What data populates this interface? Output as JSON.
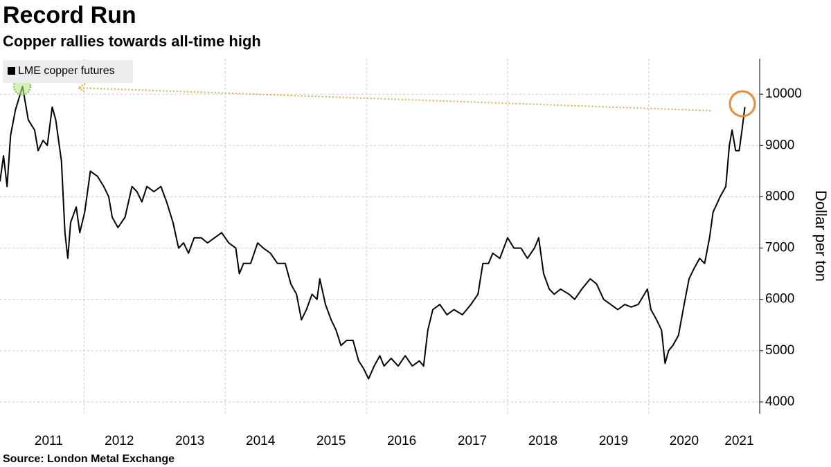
{
  "chart_data": {
    "type": "line",
    "title": "Record Run",
    "subtitle": "Copper rallies towards all-time high",
    "source": "Source: London Metal Exchange",
    "y_label": "Dollar per ton",
    "legend_position": "top-left",
    "grid": true,
    "xlim": [
      2010.81,
      2021.57
    ],
    "ylim": [
      3770,
      10690
    ],
    "yticks": [
      4000,
      5000,
      6000,
      7000,
      8000,
      9000,
      10000
    ],
    "xticks": [
      {
        "value": 2011.5,
        "label": "2011"
      },
      {
        "value": 2012.5,
        "label": "2012"
      },
      {
        "value": 2013.5,
        "label": "2013"
      },
      {
        "value": 2014.5,
        "label": "2014"
      },
      {
        "value": 2015.5,
        "label": "2015"
      },
      {
        "value": 2016.5,
        "label": "2016"
      },
      {
        "value": 2017.5,
        "label": "2017"
      },
      {
        "value": 2018.5,
        "label": "2018"
      },
      {
        "value": 2019.5,
        "label": "2019"
      },
      {
        "value": 2020.5,
        "label": "2020"
      },
      {
        "value": 2021.28,
        "label": "2021"
      }
    ],
    "xgrid": [
      2012,
      2014,
      2016,
      2018,
      2020
    ],
    "x": [
      2010.81,
      2010.86,
      2010.91,
      2010.96,
      2011.03,
      2011.13,
      2011.21,
      2011.3,
      2011.35,
      2011.42,
      2011.48,
      2011.55,
      2011.6,
      2011.68,
      2011.73,
      2011.77,
      2011.81,
      2011.89,
      2011.94,
      2012.01,
      2012.09,
      2012.19,
      2012.28,
      2012.35,
      2012.4,
      2012.48,
      2012.58,
      2012.68,
      2012.75,
      2012.82,
      2012.89,
      2012.99,
      2013.09,
      2013.17,
      2013.26,
      2013.34,
      2013.41,
      2013.48,
      2013.56,
      2013.66,
      2013.75,
      2013.85,
      2013.95,
      2014.05,
      2014.15,
      2014.2,
      2014.26,
      2014.36,
      2014.46,
      2014.54,
      2014.64,
      2014.74,
      2014.85,
      2014.93,
      2015.01,
      2015.08,
      2015.15,
      2015.23,
      2015.3,
      2015.34,
      2015.42,
      2015.5,
      2015.57,
      2015.64,
      2015.72,
      2015.81,
      2015.89,
      2015.96,
      2016.03,
      2016.11,
      2016.19,
      2016.25,
      2016.35,
      2016.45,
      2016.55,
      2016.65,
      2016.75,
      2016.81,
      2016.87,
      2016.94,
      2017.04,
      2017.14,
      2017.24,
      2017.36,
      2017.48,
      2017.58,
      2017.65,
      2017.73,
      2017.79,
      2017.89,
      2018.0,
      2018.09,
      2018.19,
      2018.28,
      2018.38,
      2018.44,
      2018.51,
      2018.59,
      2018.66,
      2018.75,
      2018.87,
      2018.95,
      2019.05,
      2019.17,
      2019.26,
      2019.36,
      2019.46,
      2019.56,
      2019.66,
      2019.75,
      2019.85,
      2019.98,
      2020.03,
      2020.11,
      2020.18,
      2020.23,
      2020.28,
      2020.34,
      2020.42,
      2020.5,
      2020.57,
      2020.64,
      2020.72,
      2020.79,
      2020.86,
      2020.91,
      2021.01,
      2021.09,
      2021.14,
      2021.18,
      2021.23,
      2021.28,
      2021.32,
      2021.36
    ],
    "series": [
      {
        "name": "LME copper futures",
        "color": "#000000",
        "values": [
          8300,
          8800,
          8200,
          9200,
          9700,
          10150,
          9500,
          9300,
          8900,
          9100,
          9000,
          9750,
          9500,
          8700,
          7300,
          6800,
          7500,
          7800,
          7300,
          7700,
          8500,
          8400,
          8200,
          8000,
          7600,
          7400,
          7600,
          8200,
          8100,
          7900,
          8200,
          8100,
          8200,
          7900,
          7500,
          7000,
          7100,
          6900,
          7200,
          7200,
          7100,
          7200,
          7300,
          7100,
          7000,
          6500,
          6700,
          6700,
          7100,
          7000,
          6900,
          6700,
          6700,
          6300,
          6100,
          5600,
          5800,
          6100,
          6000,
          6400,
          5900,
          5600,
          5400,
          5100,
          5200,
          5200,
          4800,
          4650,
          4450,
          4700,
          4900,
          4700,
          4850,
          4700,
          4900,
          4700,
          4800,
          4700,
          5400,
          5800,
          5900,
          5700,
          5800,
          5700,
          5900,
          6100,
          6700,
          6700,
          6900,
          6800,
          7200,
          7000,
          7000,
          6800,
          7000,
          7200,
          6500,
          6200,
          6100,
          6200,
          6100,
          6000,
          6200,
          6400,
          6300,
          6000,
          5900,
          5800,
          5900,
          5850,
          5900,
          6200,
          5800,
          5600,
          5400,
          4750,
          5000,
          5100,
          5300,
          5900,
          6400,
          6600,
          6800,
          6700,
          7200,
          7700,
          8000,
          8200,
          9000,
          9300,
          8900,
          8900,
          9300,
          9750
        ]
      }
    ]
  }
}
